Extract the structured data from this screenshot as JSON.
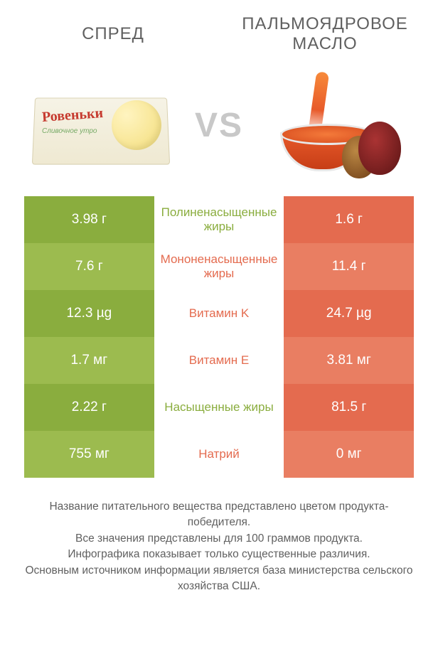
{
  "colors": {
    "left_product": "#8aad3e",
    "left_product_alt": "#9cbb4f",
    "right_product": "#e46b4f",
    "right_product_alt": "#e97e62",
    "text": "#606060",
    "vs": "#c8c8c8",
    "bg": "#ffffff"
  },
  "header": {
    "left_title": "СПРЕД",
    "right_title": "ПАЛЬМОЯДРОВОЕ МАСЛО"
  },
  "vs_label": "VS",
  "rows": [
    {
      "left": "3.98 г",
      "name": "Полиненасыщенные жиры",
      "right": "1.6 г",
      "winner": "left"
    },
    {
      "left": "7.6 г",
      "name": "Мононенасыщенные жиры",
      "right": "11.4 г",
      "winner": "right"
    },
    {
      "left": "12.3 µg",
      "name": "Витамин K",
      "right": "24.7 µg",
      "winner": "right"
    },
    {
      "left": "1.7 мг",
      "name": "Витамин E",
      "right": "3.81 мг",
      "winner": "right"
    },
    {
      "left": "2.22 г",
      "name": "Насыщенные жиры",
      "right": "81.5 г",
      "winner": "left"
    },
    {
      "left": "755 мг",
      "name": "Натрий",
      "right": "0 мг",
      "winner": "right"
    }
  ],
  "footer_lines": [
    "Название питательного вещества представлено цветом продукта-победителя.",
    "Все значения представлены для 100 граммов продукта.",
    "Инфографика показывает только существенные различия.",
    "Основным источником информации является база министерства сельского хозяйства США."
  ]
}
